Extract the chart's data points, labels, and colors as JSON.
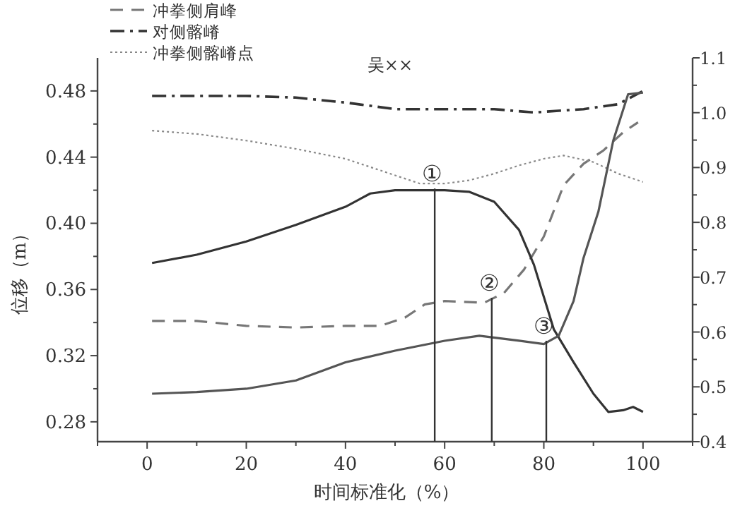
{
  "chart_data": {
    "type": "line",
    "title": "吴××",
    "xlabel": "时间标准化（%）",
    "ylabel": "位移（m）",
    "legend": "top left",
    "xlim": [
      -10,
      110
    ],
    "xticks": [
      0,
      20,
      40,
      60,
      80,
      100
    ],
    "ylim": [
      0.268,
      0.5
    ],
    "yticks": [
      0.28,
      0.32,
      0.36,
      {
        "value": 0.4,
        "label": "0.40"
      },
      0.44,
      0.48
    ],
    "y2lim": [
      0.4,
      1.1
    ],
    "y2ticks": [
      0.4,
      0.5,
      0.6,
      0.7,
      0.8,
      0.9,
      {
        "value": 1.0,
        "label": "1.0"
      },
      1.1
    ],
    "series": [
      {
        "name": "冲拳侧肩峰",
        "color": "#777777",
        "line_style": "dashed",
        "x": [
          1,
          10,
          20,
          30,
          40,
          47,
          52,
          56,
          60,
          68,
          72,
          76,
          80,
          84,
          88,
          92,
          96,
          99
        ],
        "values": [
          0.341,
          0.341,
          0.338,
          0.337,
          0.338,
          0.338,
          0.343,
          0.351,
          0.353,
          0.352,
          0.358,
          0.372,
          0.392,
          0.423,
          0.436,
          0.444,
          0.455,
          0.461
        ]
      },
      {
        "name": "对侧髂嵴",
        "color": "#333333",
        "line_style": "dashdot",
        "x": [
          1,
          10,
          20,
          30,
          40,
          50,
          60,
          70,
          78,
          88,
          95,
          100
        ],
        "values": [
          0.477,
          0.477,
          0.477,
          0.476,
          0.473,
          0.469,
          0.469,
          0.469,
          0.467,
          0.469,
          0.472,
          0.48
        ]
      },
      {
        "name": "冲拳侧髂嵴点",
        "color": "#888888",
        "line_style": "dotted",
        "x": [
          1,
          10,
          20,
          30,
          40,
          50,
          55,
          60,
          65,
          70,
          75,
          80,
          84,
          90,
          95,
          100
        ],
        "values": [
          0.456,
          0.454,
          0.45,
          0.445,
          0.439,
          0.429,
          0.424,
          0.424,
          0.426,
          0.43,
          0.435,
          0.439,
          0.441,
          0.437,
          0.43,
          0.425
        ]
      },
      {
        "color": "#333333",
        "line_style": "solid",
        "x": [
          1,
          10,
          20,
          30,
          40,
          45,
          50,
          60,
          65,
          70,
          75,
          78,
          82,
          86,
          90,
          93,
          96,
          98,
          100
        ],
        "values": [
          0.376,
          0.381,
          0.389,
          0.399,
          0.41,
          0.418,
          0.42,
          0.42,
          0.419,
          0.413,
          0.396,
          0.375,
          0.336,
          0.316,
          0.297,
          0.286,
          0.287,
          0.289,
          0.286
        ]
      },
      {
        "color": "#555555",
        "line_style": "solid",
        "x": [
          1,
          10,
          20,
          30,
          40,
          50,
          60,
          67,
          75,
          80,
          83,
          86,
          88,
          91,
          94,
          97,
          100
        ],
        "values": [
          0.297,
          0.298,
          0.3,
          0.305,
          0.316,
          0.323,
          0.329,
          0.332,
          0.329,
          0.327,
          0.332,
          0.353,
          0.379,
          0.407,
          0.45,
          0.478,
          0.479
        ]
      }
    ],
    "annotations": [
      {
        "text": "①",
        "x": 58,
        "y": 0.421
      },
      {
        "text": "②",
        "x": 69.5,
        "y": 0.355
      },
      {
        "text": "③",
        "x": 80.5,
        "y": 0.329
      }
    ]
  }
}
